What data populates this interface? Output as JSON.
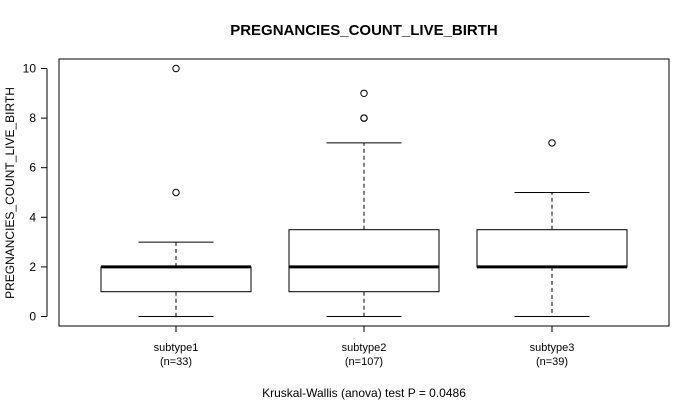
{
  "chart_data": {
    "type": "boxplot",
    "title": "PREGNANCIES_COUNT_LIVE_BIRTH",
    "ylabel": "PREGNANCIES_COUNT_LIVE_BIRTH",
    "xlabel": "",
    "ylim": [
      -0.4,
      10.4
    ],
    "yticks": [
      0,
      2,
      4,
      6,
      8,
      10
    ],
    "footer": "Kruskal-Wallis (anova) test P = 0.0486",
    "groups": [
      {
        "name": "subtype1",
        "n_label": "(n=33)",
        "min": 0,
        "q1": 1,
        "median": 2,
        "q3": 2,
        "max": 3,
        "outliers": [
          5,
          10
        ]
      },
      {
        "name": "subtype2",
        "n_label": "(n=107)",
        "min": 0,
        "q1": 1,
        "median": 2,
        "q3": 3.5,
        "max": 7,
        "outliers": [
          8,
          8,
          9
        ]
      },
      {
        "name": "subtype3",
        "n_label": "(n=39)",
        "min": 0,
        "q1": 2,
        "median": 2,
        "q3": 3.5,
        "max": 5,
        "outliers": [
          7
        ]
      }
    ]
  }
}
